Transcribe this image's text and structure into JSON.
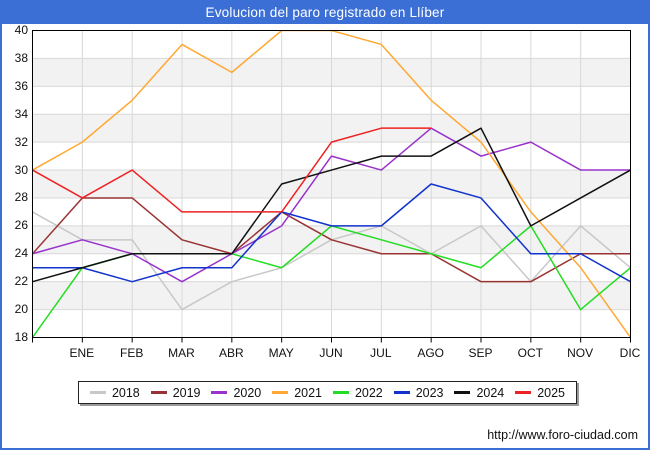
{
  "title": "Evolucion del paro registrado en Llíber",
  "footer": {
    "url": "http://www.foro-ciudad.com"
  },
  "colors": {
    "frame_and_titlebar": "#3c6fd6",
    "plot_border": "#000000",
    "gridline": "#d8d8d8",
    "band_gray": "#f2f2f2",
    "text": "#111111"
  },
  "chart_data": {
    "type": "line",
    "title": "Evolucion del paro registrado en Llíber",
    "xlabel": "",
    "ylabel": "",
    "ylim": [
      18,
      40
    ],
    "ytick_step": 2,
    "grid": true,
    "legend_position": "bottom",
    "gray_band_upper_values": [
      38,
      34,
      30,
      26,
      22
    ],
    "x_note": "13 evenly spaced points; first point sits on the y-axis and is unlabeled, the remaining 12 align with the month ticks",
    "x_tick_labels": [
      "ENE",
      "FEB",
      "MAR",
      "ABR",
      "MAY",
      "JUN",
      "JUL",
      "AGO",
      "SEP",
      "OCT",
      "NOV",
      "DIC"
    ],
    "series": [
      {
        "name": "2018",
        "color": "#c8c8c8",
        "values": [
          27,
          25,
          25,
          20,
          22,
          23,
          25,
          26,
          24,
          26,
          22,
          26,
          23
        ]
      },
      {
        "name": "2019",
        "color": "#993333",
        "values": [
          24,
          28,
          28,
          25,
          24,
          27,
          25,
          24,
          24,
          22,
          22,
          24,
          24
        ]
      },
      {
        "name": "2020",
        "color": "#9932cc",
        "values": [
          24,
          25,
          24,
          22,
          24,
          26,
          31,
          30,
          33,
          31,
          32,
          30,
          30
        ]
      },
      {
        "name": "2021",
        "color": "#ffa833",
        "values": [
          30,
          32,
          35,
          39,
          37,
          40,
          40,
          39,
          35,
          32,
          27,
          23,
          18
        ]
      },
      {
        "name": "2022",
        "color": "#22dd22",
        "values": [
          18,
          23,
          24,
          24,
          24,
          23,
          26,
          25,
          24,
          23,
          26,
          20,
          23
        ]
      },
      {
        "name": "2023",
        "color": "#1133cc",
        "values": [
          23,
          23,
          22,
          23,
          23,
          27,
          26,
          26,
          29,
          28,
          24,
          24,
          22
        ]
      },
      {
        "name": "2024",
        "color": "#111111",
        "values": [
          22,
          23,
          24,
          24,
          24,
          29,
          30,
          31,
          31,
          33,
          26,
          28,
          30
        ]
      },
      {
        "name": "2025",
        "color": "#ee2222",
        "values": [
          30,
          28,
          30,
          27,
          27,
          27,
          32,
          33,
          33,
          null,
          null,
          null,
          null
        ]
      }
    ]
  }
}
